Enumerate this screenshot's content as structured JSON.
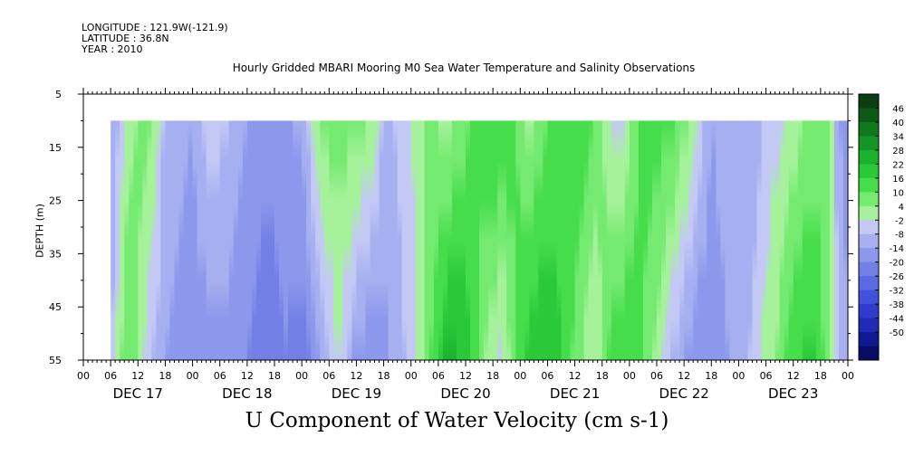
{
  "header": {
    "longitude": "LONGITUDE : 121.9W(-121.9)",
    "latitude": "LATITUDE : 36.8N",
    "year": "YEAR : 2010",
    "title": "Hourly Gridded MBARI Mooring M0 Sea Water Temperature and Salinity Observations"
  },
  "chart_data": {
    "type": "heatmap",
    "title": "U Component of Water Velocity (cm s-1)",
    "ylabel": "DEPTH (m)",
    "y_ticks": [
      "5",
      "15",
      "25",
      "35",
      "45",
      "55"
    ],
    "y_values": [
      5,
      15,
      25,
      35,
      45,
      55
    ],
    "y_range": [
      5,
      55
    ],
    "y_inverted": true,
    "data_depth_range": [
      10,
      55
    ],
    "x_hour_labels": [
      "00",
      "06",
      "12",
      "18",
      "00",
      "06",
      "12",
      "18",
      "00",
      "06",
      "12",
      "18",
      "00",
      "06",
      "12",
      "18",
      "00",
      "06",
      "12",
      "18",
      "00",
      "06",
      "12",
      "18",
      "00",
      "06",
      "12",
      "18",
      "00"
    ],
    "x_range_hours": [
      0,
      168
    ],
    "data_start_hour": 6,
    "date_labels": [
      "DEC 17",
      "DEC 18",
      "DEC 19",
      "DEC 20",
      "DEC 21",
      "DEC 22",
      "DEC 23"
    ],
    "colorbar": {
      "levels": [
        "46",
        "40",
        "34",
        "28",
        "22",
        "16",
        "10",
        "4",
        "-2",
        "-8",
        "-14",
        "-20",
        "-26",
        "-32",
        "-38",
        "-44",
        "-50"
      ],
      "positive_colors": [
        "#0a3f10",
        "#0d5a16",
        "#10781d",
        "#149526",
        "#1ab22f",
        "#29c93a",
        "#46dd4d",
        "#75ea70",
        "#a6f29b"
      ],
      "negative_colors": [
        "#c3c8f5",
        "#a6b0f0",
        "#8c98eb",
        "#7280e6",
        "#5a6ae1",
        "#4151da",
        "#2e3bcd",
        "#1f2ab5",
        "#101a90",
        "#080c66"
      ]
    },
    "u_profile_surface": [
      {
        "hour": 6,
        "u": -12
      },
      {
        "hour": 8,
        "u": -8
      },
      {
        "hour": 10,
        "u": 2
      },
      {
        "hour": 12,
        "u": 4
      },
      {
        "hour": 14,
        "u": 6
      },
      {
        "hour": 16,
        "u": 2
      },
      {
        "hour": 18,
        "u": -10
      },
      {
        "hour": 24,
        "u": -14
      },
      {
        "hour": 28,
        "u": -4
      },
      {
        "hour": 32,
        "u": -8
      },
      {
        "hour": 36,
        "u": -14
      },
      {
        "hour": 42,
        "u": -18
      },
      {
        "hour": 48,
        "u": -12
      },
      {
        "hour": 52,
        "u": 4
      },
      {
        "hour": 56,
        "u": 8
      },
      {
        "hour": 60,
        "u": 6
      },
      {
        "hour": 64,
        "u": 2
      },
      {
        "hour": 66,
        "u": -10
      },
      {
        "hour": 70,
        "u": -6
      },
      {
        "hour": 74,
        "u": 2
      },
      {
        "hour": 76,
        "u": 6
      },
      {
        "hour": 80,
        "u": 2
      },
      {
        "hour": 86,
        "u": 12
      },
      {
        "hour": 90,
        "u": 16
      },
      {
        "hour": 94,
        "u": 14
      },
      {
        "hour": 98,
        "u": 2
      },
      {
        "hour": 102,
        "u": 10
      },
      {
        "hour": 106,
        "u": 16
      },
      {
        "hour": 110,
        "u": 14
      },
      {
        "hour": 114,
        "u": 4
      },
      {
        "hour": 118,
        "u": -6
      },
      {
        "hour": 122,
        "u": 10
      },
      {
        "hour": 126,
        "u": 14
      },
      {
        "hour": 130,
        "u": 10
      },
      {
        "hour": 134,
        "u": 2
      },
      {
        "hour": 138,
        "u": -14
      },
      {
        "hour": 142,
        "u": -10
      },
      {
        "hour": 146,
        "u": -14
      },
      {
        "hour": 150,
        "u": -6
      },
      {
        "hour": 154,
        "u": -2
      },
      {
        "hour": 158,
        "u": 4
      },
      {
        "hour": 162,
        "u": 8
      },
      {
        "hour": 164,
        "u": 4
      },
      {
        "hour": 166,
        "u": -14
      },
      {
        "hour": 168,
        "u": -16
      }
    ],
    "u_profile_bottom": [
      {
        "hour": 6,
        "u": -10
      },
      {
        "hour": 8,
        "u": 4
      },
      {
        "hour": 10,
        "u": 10
      },
      {
        "hour": 12,
        "u": 6
      },
      {
        "hour": 14,
        "u": -6
      },
      {
        "hour": 18,
        "u": -14
      },
      {
        "hour": 24,
        "u": -18
      },
      {
        "hour": 30,
        "u": -16
      },
      {
        "hour": 36,
        "u": -20
      },
      {
        "hour": 40,
        "u": -26
      },
      {
        "hour": 44,
        "u": -20
      },
      {
        "hour": 48,
        "u": -24
      },
      {
        "hour": 52,
        "u": -14
      },
      {
        "hour": 56,
        "u": -2
      },
      {
        "hour": 60,
        "u": -16
      },
      {
        "hour": 64,
        "u": -20
      },
      {
        "hour": 68,
        "u": -12
      },
      {
        "hour": 72,
        "u": -6
      },
      {
        "hour": 76,
        "u": 8
      },
      {
        "hour": 80,
        "u": 24
      },
      {
        "hour": 84,
        "u": 20
      },
      {
        "hour": 88,
        "u": 4
      },
      {
        "hour": 92,
        "u": -4
      },
      {
        "hour": 96,
        "u": 14
      },
      {
        "hour": 100,
        "u": 22
      },
      {
        "hour": 104,
        "u": 18
      },
      {
        "hour": 108,
        "u": 8
      },
      {
        "hour": 112,
        "u": -2
      },
      {
        "hour": 116,
        "u": 12
      },
      {
        "hour": 120,
        "u": 16
      },
      {
        "hour": 124,
        "u": 8
      },
      {
        "hour": 128,
        "u": -6
      },
      {
        "hour": 132,
        "u": -14
      },
      {
        "hour": 136,
        "u": -20
      },
      {
        "hour": 140,
        "u": -16
      },
      {
        "hour": 144,
        "u": -12
      },
      {
        "hour": 148,
        "u": -4
      },
      {
        "hour": 152,
        "u": 4
      },
      {
        "hour": 156,
        "u": 14
      },
      {
        "hour": 160,
        "u": 18
      },
      {
        "hour": 164,
        "u": 6
      },
      {
        "hour": 166,
        "u": -10
      },
      {
        "hour": 168,
        "u": -14
      }
    ]
  }
}
